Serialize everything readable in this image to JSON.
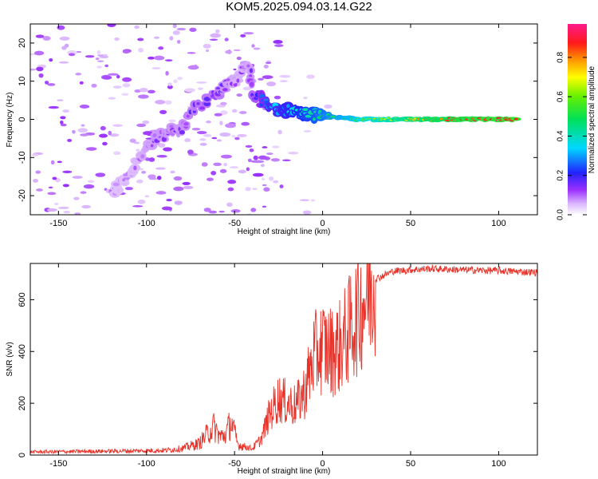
{
  "title": "KOM5.2025.094.03.14.G22",
  "colors": {
    "snr_line": "#e8332a",
    "axis": "#000000"
  },
  "chart_data": [
    {
      "type": "heatmap",
      "xlabel": "Height of straight line (km)",
      "ylabel": "Frequency (Hz)",
      "xlim": [
        -166,
        122
      ],
      "ylim": [
        -25,
        25
      ],
      "xticks": [
        -150,
        -100,
        -50,
        0,
        50,
        100
      ],
      "yticks": [
        -20,
        -10,
        0,
        10,
        20
      ],
      "colorbar": {
        "label": "Normalized spectral amplitude",
        "range": [
          0,
          0.97
        ],
        "ticks": [
          0.0,
          0.2,
          0.4,
          0.6,
          0.8
        ],
        "colormap": "white-purple-blue-cyan-green-yellow-red-pink"
      },
      "ridge": {
        "description_points": [
          [
            -120,
            -20,
            0.08
          ],
          [
            -110,
            -14,
            0.08
          ],
          [
            -95,
            -5,
            0.12
          ],
          [
            -80,
            -2,
            0.12
          ],
          [
            -72,
            3,
            0.15
          ],
          [
            -60,
            7,
            0.15
          ],
          [
            -50,
            10,
            0.1
          ],
          [
            -42,
            14,
            0.1
          ],
          [
            -40,
            7,
            0.15
          ],
          [
            -30,
            3,
            0.3
          ],
          [
            -15,
            2,
            0.35
          ],
          [
            0,
            1,
            0.45
          ],
          [
            20,
            0,
            0.55
          ],
          [
            50,
            0,
            0.75
          ],
          [
            80,
            0,
            0.85
          ],
          [
            110,
            0,
            0.9
          ]
        ]
      }
    },
    {
      "type": "line",
      "xlabel": "Height of straight line (km)",
      "ylabel": "SNR (v/v)",
      "xlim": [
        -166,
        122
      ],
      "ylim": [
        0,
        740
      ],
      "xticks": [
        -150,
        -100,
        -50,
        0,
        50,
        100
      ],
      "yticks": [
        0,
        200,
        400,
        600
      ],
      "envelope": [
        [
          -166,
          12
        ],
        [
          -120,
          15
        ],
        [
          -90,
          18
        ],
        [
          -80,
          25
        ],
        [
          -70,
          45
        ],
        [
          -62,
          110
        ],
        [
          -58,
          70
        ],
        [
          -55,
          80
        ],
        [
          -52,
          130
        ],
        [
          -48,
          40
        ],
        [
          -40,
          25
        ],
        [
          -35,
          60
        ],
        [
          -30,
          160
        ],
        [
          -25,
          220
        ],
        [
          -20,
          200
        ],
        [
          -15,
          190
        ],
        [
          -10,
          250
        ],
        [
          -5,
          380
        ],
        [
          0,
          420
        ],
        [
          5,
          400
        ],
        [
          10,
          420
        ],
        [
          15,
          480
        ],
        [
          20,
          550
        ],
        [
          25,
          620
        ],
        [
          30,
          680
        ],
        [
          40,
          710
        ],
        [
          60,
          720
        ],
        [
          80,
          715
        ],
        [
          100,
          712
        ],
        [
          122,
          705
        ]
      ]
    }
  ]
}
